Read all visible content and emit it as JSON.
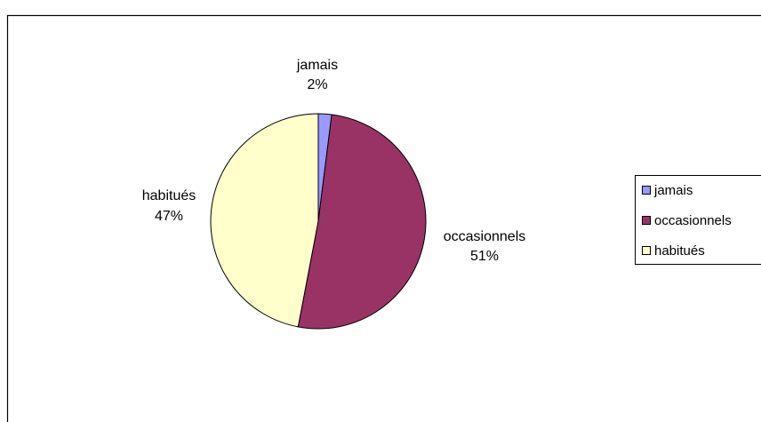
{
  "chart_data": {
    "type": "pie",
    "title": "",
    "slices": [
      {
        "label": "jamais",
        "value": 2,
        "percent_label": "2%",
        "color": "#9999FF"
      },
      {
        "label": "occasionnels",
        "value": 51,
        "percent_label": "51%",
        "color": "#993366"
      },
      {
        "label": "habitués",
        "value": 47,
        "percent_label": "47%",
        "color": "#FFFFCC"
      }
    ],
    "legend": {
      "position": "right",
      "entries": [
        "jamais",
        "occasionnels",
        "habitués"
      ]
    },
    "border_color": "#000000",
    "background": "#FFFFFF"
  }
}
